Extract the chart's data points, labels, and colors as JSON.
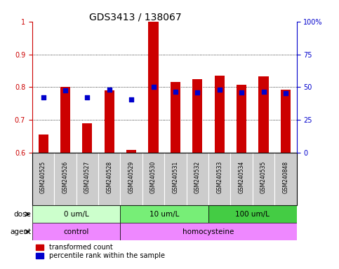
{
  "title": "GDS3413 / 138067",
  "samples": [
    "GSM240525",
    "GSM240526",
    "GSM240527",
    "GSM240528",
    "GSM240529",
    "GSM240530",
    "GSM240531",
    "GSM240532",
    "GSM240533",
    "GSM240534",
    "GSM240535",
    "GSM240848"
  ],
  "red_values": [
    0.655,
    0.8,
    0.69,
    0.79,
    0.61,
    1.0,
    0.815,
    0.825,
    0.835,
    0.808,
    0.834,
    0.792
  ],
  "blue_values": [
    0.77,
    0.79,
    0.77,
    0.792,
    0.762,
    0.8,
    0.787,
    0.785,
    0.792,
    0.785,
    0.787,
    0.782
  ],
  "ylim_left": [
    0.6,
    1.0
  ],
  "ylim_right": [
    0,
    100
  ],
  "yticks_left": [
    0.6,
    0.7,
    0.8,
    0.9,
    1.0
  ],
  "ytick_labels_left": [
    "0.6",
    "0.7",
    "0.8",
    "0.9",
    "1"
  ],
  "yticks_right": [
    0,
    25,
    50,
    75,
    100
  ],
  "ytick_labels_right": [
    "0",
    "25",
    "50",
    "75",
    "100%"
  ],
  "dose_groups": [
    {
      "label": "0 um/L",
      "start": 0,
      "end": 4,
      "color": "#ccffcc"
    },
    {
      "label": "10 um/L",
      "start": 4,
      "end": 8,
      "color": "#77ee77"
    },
    {
      "label": "100 um/L",
      "start": 8,
      "end": 12,
      "color": "#44cc44"
    }
  ],
  "agent_groups": [
    {
      "label": "control",
      "start": 0,
      "end": 4
    },
    {
      "label": "homocysteine",
      "start": 4,
      "end": 12
    }
  ],
  "agent_color": "#ee88ff",
  "dose_label": "dose",
  "agent_label": "agent",
  "red_color": "#cc0000",
  "blue_color": "#0000cc",
  "bar_width": 0.45,
  "blue_marker_size": 18,
  "bg_color": "#ffffff",
  "tick_bg": "#cccccc",
  "legend_red": "transformed count",
  "legend_blue": "percentile rank within the sample",
  "title_fontsize": 10,
  "axis_fontsize": 7,
  "label_fontsize": 7.5,
  "sample_fontsize": 5.5,
  "legend_fontsize": 7
}
